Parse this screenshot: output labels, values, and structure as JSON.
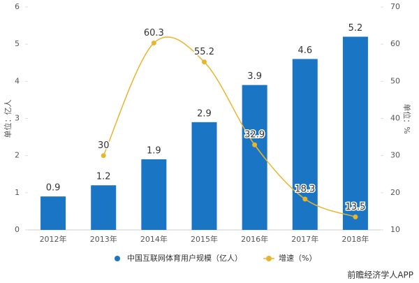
{
  "chart_data": {
    "type": "bar_line",
    "categories": [
      "2012年",
      "2013年",
      "2014年",
      "2015年",
      "2016年",
      "2017年",
      "2018年"
    ],
    "series": [
      {
        "name": "中国互联网体育用户规模（亿人）",
        "color": "#1a75c4",
        "type": "bar",
        "values": [
          0.9,
          1.2,
          1.9,
          2.9,
          3.9,
          4.6,
          5.2
        ]
      },
      {
        "name": "增速（%）",
        "color": "#e8b52c",
        "type": "line",
        "axis": "y2",
        "values": [
          null,
          30,
          60.3,
          55.2,
          32.9,
          18.3,
          13.5
        ]
      }
    ],
    "ylabel": "单位：亿人",
    "y2label": "单位：%",
    "ylim": [
      0,
      6
    ],
    "yticks": [
      0,
      1,
      2,
      3,
      4,
      5,
      6
    ],
    "y2lim": [
      10,
      70
    ],
    "y2ticks": [
      10,
      20,
      30,
      40,
      50,
      60,
      70
    ],
    "grid": false,
    "legend": "bottom",
    "source": "前瞻经济学人APP"
  }
}
